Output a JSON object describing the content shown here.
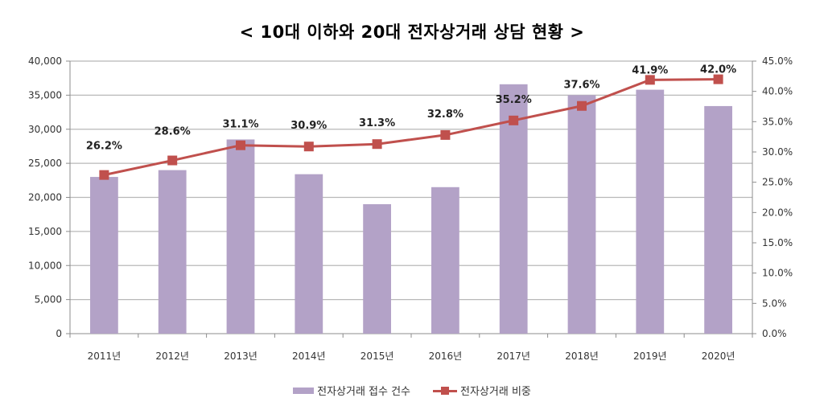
{
  "chart_data": {
    "type": "bar+line",
    "title": "< 10대 이하와 20대 전자상거래 상담 현황 >",
    "categories": [
      "2011년",
      "2012년",
      "2013년",
      "2014년",
      "2015년",
      "2016년",
      "2017년",
      "2018년",
      "2019년",
      "2020년"
    ],
    "series": [
      {
        "name": "전자상거래 접수 건수",
        "type": "bar",
        "axis": "left",
        "color": "#B3A2C7",
        "values": [
          23000,
          24000,
          28500,
          23400,
          19000,
          21500,
          36600,
          35000,
          35800,
          33400
        ]
      },
      {
        "name": "전자상거래 비중",
        "type": "line",
        "axis": "right",
        "color": "#C0504D",
        "values": [
          26.2,
          28.6,
          31.1,
          30.9,
          31.3,
          32.8,
          35.2,
          37.6,
          41.9,
          42.0
        ],
        "labels": [
          "26.2%",
          "28.6%",
          "31.1%",
          "30.9%",
          "31.3%",
          "32.8%",
          "35.2%",
          "37.6%",
          "41.9%",
          "42.0%"
        ]
      }
    ],
    "left_axis": {
      "range": [
        0,
        40000
      ],
      "ticks": [
        0,
        5000,
        10000,
        15000,
        20000,
        25000,
        30000,
        35000,
        40000
      ],
      "tick_labels": [
        "0",
        "5,000",
        "10,000",
        "15,000",
        "20,000",
        "25,000",
        "30,000",
        "35,000",
        "40,000"
      ]
    },
    "right_axis": {
      "range": [
        0,
        45
      ],
      "ticks": [
        0,
        5,
        10,
        15,
        20,
        25,
        30,
        35,
        40,
        45
      ],
      "tick_labels": [
        "0.0%",
        "5.0%",
        "10.0%",
        "15.0%",
        "20.0%",
        "25.0%",
        "30.0%",
        "35.0%",
        "40.0%",
        "45.0%"
      ]
    },
    "grid": true,
    "legend_position": "bottom",
    "xlabel": "",
    "ylabel": ""
  }
}
